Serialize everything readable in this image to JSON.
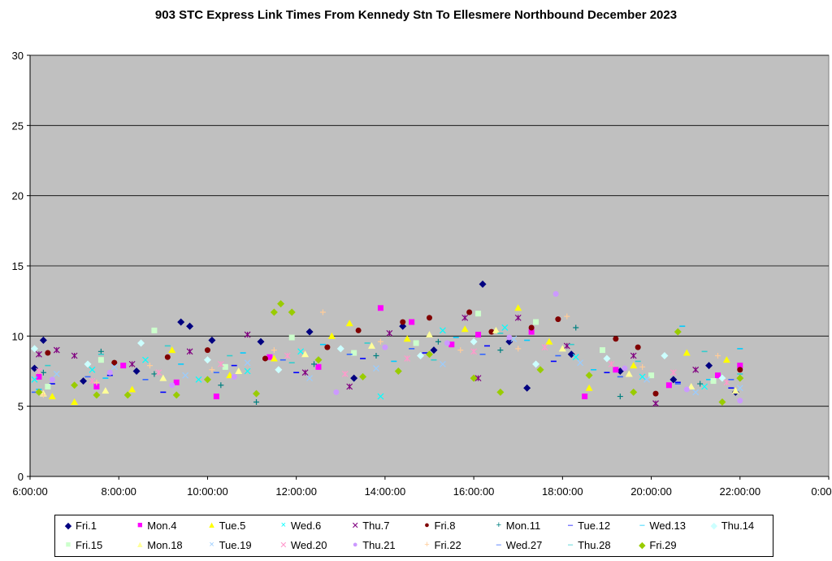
{
  "chart_data": {
    "type": "scatter",
    "title": "903 STC Express Link Times From Kennedy Stn To Ellesmere Northbound December 2023",
    "xlabel": "",
    "ylabel": "",
    "xlim": [
      6,
      24
    ],
    "ylim": [
      0,
      30
    ],
    "x_ticks": [
      "6:00:00",
      "8:00:00",
      "10:00:00",
      "12:00:00",
      "14:00:00",
      "16:00:00",
      "18:00:00",
      "20:00:00",
      "22:00:00",
      "0:00:00"
    ],
    "y_ticks": [
      "0",
      "5",
      "10",
      "15",
      "20",
      "25",
      "30"
    ],
    "grid": true,
    "legend_position": "bottom",
    "series": [
      {
        "name": "Fri.1",
        "color": "#000080",
        "marker": "diamond",
        "points": [
          [
            6.1,
            7.7
          ],
          [
            6.3,
            9.7
          ],
          [
            7.2,
            6.8
          ],
          [
            8.4,
            7.5
          ],
          [
            9.4,
            11.0
          ],
          [
            9.6,
            10.7
          ],
          [
            10.1,
            9.7
          ],
          [
            11.2,
            9.6
          ],
          [
            12.3,
            10.3
          ],
          [
            13.3,
            7.0
          ],
          [
            14.4,
            10.7
          ],
          [
            15.1,
            9.0
          ],
          [
            16.2,
            13.7
          ],
          [
            16.8,
            9.6
          ],
          [
            17.2,
            6.3
          ],
          [
            18.2,
            8.7
          ],
          [
            19.3,
            7.5
          ],
          [
            20.5,
            6.9
          ],
          [
            21.3,
            7.9
          ],
          [
            21.9,
            6.0
          ]
        ]
      },
      {
        "name": "Mon.4",
        "color": "#FF00FF",
        "marker": "square",
        "points": [
          [
            6.2,
            7.1
          ],
          [
            7.5,
            6.4
          ],
          [
            8.1,
            7.9
          ],
          [
            9.3,
            6.7
          ],
          [
            10.2,
            5.7
          ],
          [
            11.4,
            8.5
          ],
          [
            12.5,
            7.8
          ],
          [
            13.9,
            12.0
          ],
          [
            14.6,
            11.0
          ],
          [
            15.5,
            9.4
          ],
          [
            16.1,
            10.1
          ],
          [
            17.3,
            10.3
          ],
          [
            18.5,
            5.7
          ],
          [
            19.2,
            7.6
          ],
          [
            20.4,
            6.5
          ],
          [
            21.5,
            7.2
          ],
          [
            22.0,
            7.9
          ]
        ]
      },
      {
        "name": "Tue.5",
        "color": "#FFFF00",
        "marker": "triangle",
        "points": [
          [
            6.5,
            5.7
          ],
          [
            7.0,
            5.3
          ],
          [
            8.3,
            6.2
          ],
          [
            9.2,
            9.0
          ],
          [
            10.5,
            7.2
          ],
          [
            11.5,
            8.4
          ],
          [
            12.8,
            10.0
          ],
          [
            13.2,
            10.9
          ],
          [
            14.5,
            9.8
          ],
          [
            15.8,
            10.5
          ],
          [
            17.0,
            12.0
          ],
          [
            17.7,
            9.6
          ],
          [
            18.6,
            6.3
          ],
          [
            19.6,
            7.9
          ],
          [
            20.8,
            8.8
          ],
          [
            21.7,
            8.3
          ]
        ]
      },
      {
        "name": "Wed.6",
        "color": "#00FFFF",
        "marker": "x",
        "points": [
          [
            6.1,
            6.9
          ],
          [
            7.4,
            7.6
          ],
          [
            8.6,
            8.3
          ],
          [
            9.8,
            6.9
          ],
          [
            10.9,
            7.5
          ],
          [
            12.1,
            8.9
          ],
          [
            13.9,
            5.7
          ],
          [
            15.3,
            10.4
          ],
          [
            16.7,
            10.6
          ],
          [
            18.3,
            8.5
          ],
          [
            19.8,
            7.1
          ],
          [
            21.2,
            6.4
          ]
        ]
      },
      {
        "name": "Thu.7",
        "color": "#800080",
        "marker": "asterisk",
        "points": [
          [
            6.2,
            8.7
          ],
          [
            6.6,
            9.0
          ],
          [
            7.0,
            8.6
          ],
          [
            8.3,
            8.0
          ],
          [
            9.6,
            8.9
          ],
          [
            10.9,
            10.1
          ],
          [
            12.2,
            7.4
          ],
          [
            13.2,
            6.4
          ],
          [
            14.1,
            10.2
          ],
          [
            15.8,
            11.3
          ],
          [
            16.1,
            7.0
          ],
          [
            17.0,
            11.3
          ],
          [
            18.1,
            9.3
          ],
          [
            19.6,
            8.6
          ],
          [
            20.1,
            5.2
          ],
          [
            21.0,
            7.6
          ]
        ]
      },
      {
        "name": "Fri.8",
        "color": "#800000",
        "marker": "circle",
        "points": [
          [
            6.4,
            8.8
          ],
          [
            7.9,
            8.1
          ],
          [
            9.1,
            8.5
          ],
          [
            10.0,
            9.0
          ],
          [
            11.3,
            8.4
          ],
          [
            12.7,
            9.2
          ],
          [
            13.4,
            10.4
          ],
          [
            14.4,
            11.0
          ],
          [
            15.0,
            11.3
          ],
          [
            15.9,
            11.7
          ],
          [
            16.4,
            10.3
          ],
          [
            17.3,
            10.6
          ],
          [
            17.9,
            11.2
          ],
          [
            19.2,
            9.8
          ],
          [
            19.7,
            9.2
          ],
          [
            20.1,
            5.9
          ],
          [
            22.0,
            7.6
          ]
        ]
      },
      {
        "name": "Mon.11",
        "color": "#008080",
        "marker": "plus",
        "points": [
          [
            6.3,
            7.4
          ],
          [
            7.6,
            8.9
          ],
          [
            8.8,
            7.3
          ],
          [
            10.3,
            6.5
          ],
          [
            11.1,
            5.3
          ],
          [
            12.4,
            8.0
          ],
          [
            13.8,
            8.6
          ],
          [
            15.2,
            9.6
          ],
          [
            16.6,
            9.0
          ],
          [
            18.3,
            10.6
          ],
          [
            19.3,
            5.7
          ],
          [
            21.1,
            6.6
          ]
        ]
      },
      {
        "name": "Tue.12",
        "color": "#0000FF",
        "marker": "dash",
        "points": [
          [
            6.5,
            6.6
          ],
          [
            7.8,
            7.2
          ],
          [
            9.0,
            6.0
          ],
          [
            10.6,
            7.9
          ],
          [
            12.0,
            7.4
          ],
          [
            13.5,
            8.4
          ],
          [
            14.9,
            8.8
          ],
          [
            16.3,
            9.3
          ],
          [
            17.8,
            8.2
          ],
          [
            19.0,
            7.4
          ],
          [
            20.6,
            6.7
          ],
          [
            21.8,
            6.3
          ]
        ]
      },
      {
        "name": "Wed.13",
        "color": "#00CCFF",
        "marker": "dash",
        "points": [
          [
            6.2,
            6.2
          ],
          [
            7.7,
            7.0
          ],
          [
            9.4,
            8.0
          ],
          [
            10.8,
            8.8
          ],
          [
            12.6,
            9.4
          ],
          [
            14.2,
            8.2
          ],
          [
            15.6,
            9.9
          ],
          [
            17.2,
            9.7
          ],
          [
            18.7,
            7.6
          ],
          [
            20.7,
            10.7
          ],
          [
            21.3,
            6.9
          ],
          [
            22.0,
            9.1
          ]
        ]
      },
      {
        "name": "Thu.14",
        "color": "#CCFFFF",
        "marker": "diamond",
        "points": [
          [
            6.1,
            9.1
          ],
          [
            7.3,
            8.0
          ],
          [
            8.5,
            9.5
          ],
          [
            10.0,
            8.3
          ],
          [
            11.6,
            7.6
          ],
          [
            13.0,
            9.1
          ],
          [
            14.8,
            8.6
          ],
          [
            16.0,
            9.6
          ],
          [
            17.4,
            8.0
          ],
          [
            19.0,
            8.4
          ],
          [
            20.3,
            8.6
          ],
          [
            21.6,
            7.0
          ]
        ]
      },
      {
        "name": "Fri.15",
        "color": "#CCFFCC",
        "marker": "square",
        "points": [
          [
            6.4,
            6.4
          ],
          [
            7.6,
            8.3
          ],
          [
            8.8,
            10.4
          ],
          [
            10.4,
            7.8
          ],
          [
            11.9,
            9.9
          ],
          [
            13.3,
            8.8
          ],
          [
            14.7,
            9.5
          ],
          [
            16.1,
            11.6
          ],
          [
            17.4,
            11.0
          ],
          [
            18.9,
            9.0
          ],
          [
            20.0,
            7.2
          ],
          [
            21.4,
            6.8
          ]
        ]
      },
      {
        "name": "Mon.18",
        "color": "#FFFF99",
        "marker": "triangle",
        "points": [
          [
            6.3,
            5.9
          ],
          [
            7.7,
            6.1
          ],
          [
            9.0,
            7.0
          ],
          [
            10.7,
            7.5
          ],
          [
            12.2,
            8.7
          ],
          [
            13.7,
            9.3
          ],
          [
            15.0,
            10.1
          ],
          [
            16.5,
            10.4
          ],
          [
            18.0,
            9.1
          ],
          [
            19.5,
            7.3
          ],
          [
            20.9,
            6.4
          ],
          [
            21.9,
            6.1
          ]
        ]
      },
      {
        "name": "Tue.19",
        "color": "#99CCFF",
        "marker": "x",
        "points": [
          [
            6.6,
            7.3
          ],
          [
            7.9,
            7.8
          ],
          [
            9.5,
            7.2
          ],
          [
            10.9,
            8.1
          ],
          [
            12.3,
            7.0
          ],
          [
            13.8,
            7.7
          ],
          [
            15.3,
            8.0
          ],
          [
            16.9,
            9.8
          ],
          [
            18.4,
            8.1
          ],
          [
            19.9,
            6.9
          ],
          [
            21.0,
            6.0
          ],
          [
            22.0,
            6.3
          ]
        ]
      },
      {
        "name": "Wed.20",
        "color": "#FF99CC",
        "marker": "asterisk",
        "points": [
          [
            6.2,
            7.5
          ],
          [
            7.4,
            6.8
          ],
          [
            8.9,
            7.4
          ],
          [
            10.3,
            8.0
          ],
          [
            11.8,
            8.6
          ],
          [
            13.1,
            7.3
          ],
          [
            14.5,
            8.4
          ],
          [
            16.0,
            8.9
          ],
          [
            17.6,
            9.2
          ],
          [
            19.1,
            8.0
          ],
          [
            20.5,
            7.4
          ],
          [
            21.7,
            6.7
          ]
        ]
      },
      {
        "name": "Thu.21",
        "color": "#CC99FF",
        "marker": "circle",
        "points": [
          [
            6.5,
            6.9
          ],
          [
            7.8,
            7.4
          ],
          [
            9.2,
            6.5
          ],
          [
            10.6,
            7.1
          ],
          [
            12.9,
            6.0
          ],
          [
            14.0,
            9.2
          ],
          [
            15.4,
            9.5
          ],
          [
            16.8,
            9.9
          ],
          [
            17.85,
            13.0
          ],
          [
            19.4,
            7.7
          ],
          [
            20.8,
            6.2
          ],
          [
            22.0,
            5.4
          ]
        ]
      },
      {
        "name": "Fri.22",
        "color": "#FFCC99",
        "marker": "plus",
        "points": [
          [
            6.3,
            5.8
          ],
          [
            7.5,
            6.7
          ],
          [
            8.7,
            7.9
          ],
          [
            10.1,
            7.6
          ],
          [
            11.5,
            9.0
          ],
          [
            12.6,
            11.7
          ],
          [
            13.9,
            9.6
          ],
          [
            15.7,
            9.0
          ],
          [
            17.0,
            9.1
          ],
          [
            18.1,
            11.4
          ],
          [
            19.8,
            7.8
          ],
          [
            21.5,
            8.6
          ]
        ]
      },
      {
        "name": "Wed.27",
        "color": "#3366FF",
        "marker": "dash",
        "points": [
          [
            6.1,
            6.0
          ],
          [
            7.3,
            7.1
          ],
          [
            8.6,
            6.9
          ],
          [
            10.2,
            7.4
          ],
          [
            11.7,
            8.3
          ],
          [
            13.2,
            8.7
          ],
          [
            14.6,
            9.1
          ],
          [
            16.2,
            8.7
          ],
          [
            17.9,
            8.6
          ],
          [
            19.3,
            7.1
          ],
          [
            20.6,
            6.6
          ],
          [
            21.8,
            6.9
          ]
        ]
      },
      {
        "name": "Thu.28",
        "color": "#33CCCC",
        "marker": "dash",
        "points": [
          [
            6.4,
            7.9
          ],
          [
            7.6,
            8.7
          ],
          [
            9.1,
            9.3
          ],
          [
            10.5,
            8.6
          ],
          [
            11.9,
            8.1
          ],
          [
            13.6,
            9.5
          ],
          [
            15.1,
            8.3
          ],
          [
            16.6,
            10.2
          ],
          [
            18.2,
            9.4
          ],
          [
            19.7,
            8.2
          ],
          [
            21.2,
            8.9
          ],
          [
            22.0,
            7.3
          ]
        ]
      },
      {
        "name": "Fri.29",
        "color": "#99CC00",
        "marker": "diamond",
        "points": [
          [
            6.2,
            6.0
          ],
          [
            7.0,
            6.5
          ],
          [
            7.5,
            5.8
          ],
          [
            8.2,
            5.8
          ],
          [
            9.3,
            5.8
          ],
          [
            10.0,
            6.9
          ],
          [
            11.1,
            5.9
          ],
          [
            11.5,
            11.7
          ],
          [
            11.65,
            12.3
          ],
          [
            11.9,
            11.7
          ],
          [
            12.5,
            8.3
          ],
          [
            13.5,
            7.1
          ],
          [
            14.3,
            7.5
          ],
          [
            15.0,
            8.7
          ],
          [
            16.0,
            7.0
          ],
          [
            16.6,
            6.0
          ],
          [
            17.5,
            7.6
          ],
          [
            18.6,
            7.2
          ],
          [
            19.6,
            6.0
          ],
          [
            20.6,
            10.3
          ],
          [
            21.6,
            5.3
          ],
          [
            22.0,
            7.0
          ]
        ]
      }
    ]
  }
}
